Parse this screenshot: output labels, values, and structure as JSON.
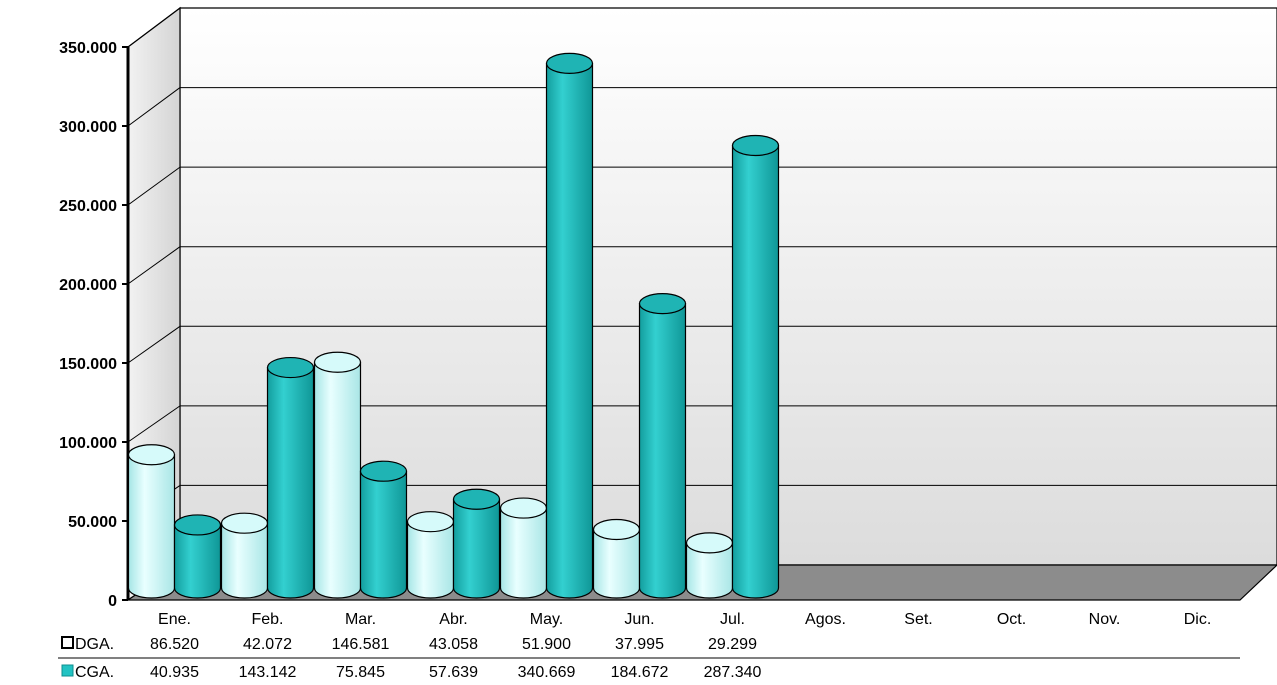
{
  "chart_data": {
    "type": "bar",
    "variant": "3d-cylinder-with-data-table",
    "categories": [
      "Ene.",
      "Feb.",
      "Mar.",
      "Abr.",
      "May.",
      "Jun.",
      "Jul.",
      "Agos.",
      "Set.",
      "Oct.",
      "Nov.",
      "Dic."
    ],
    "series": [
      {
        "name": "DGA.",
        "color": "#c7f5f5",
        "values": [
          86520,
          42072,
          146581,
          43058,
          51900,
          37995,
          29299,
          null,
          null,
          null,
          null,
          null
        ],
        "labels": [
          "86.520",
          "42.072",
          "146.581",
          "43.058",
          "51.900",
          "37.995",
          "29.299",
          "",
          "",
          "",
          "",
          ""
        ]
      },
      {
        "name": "CGA.",
        "color": "#22c3c3",
        "values": [
          40935,
          143142,
          75845,
          57639,
          340669,
          184672,
          287340,
          null,
          null,
          null,
          null,
          null
        ],
        "labels": [
          "40.935",
          "143.142",
          "75.845",
          "57.639",
          "340.669",
          "184.672",
          "287.340",
          "",
          "",
          "",
          "",
          ""
        ]
      }
    ],
    "yticks": [
      "0",
      "50.000",
      "100.000",
      "150.000",
      "200.000",
      "250.000",
      "300.000",
      "350.000"
    ],
    "ylim": [
      0,
      350000
    ],
    "grid": true,
    "legend": "data-table-left",
    "colors": {
      "wall_top": "#ffffff",
      "wall_bottom": "#dcdcdc",
      "floor": "#8c8c8c",
      "grid": "#000000"
    }
  }
}
